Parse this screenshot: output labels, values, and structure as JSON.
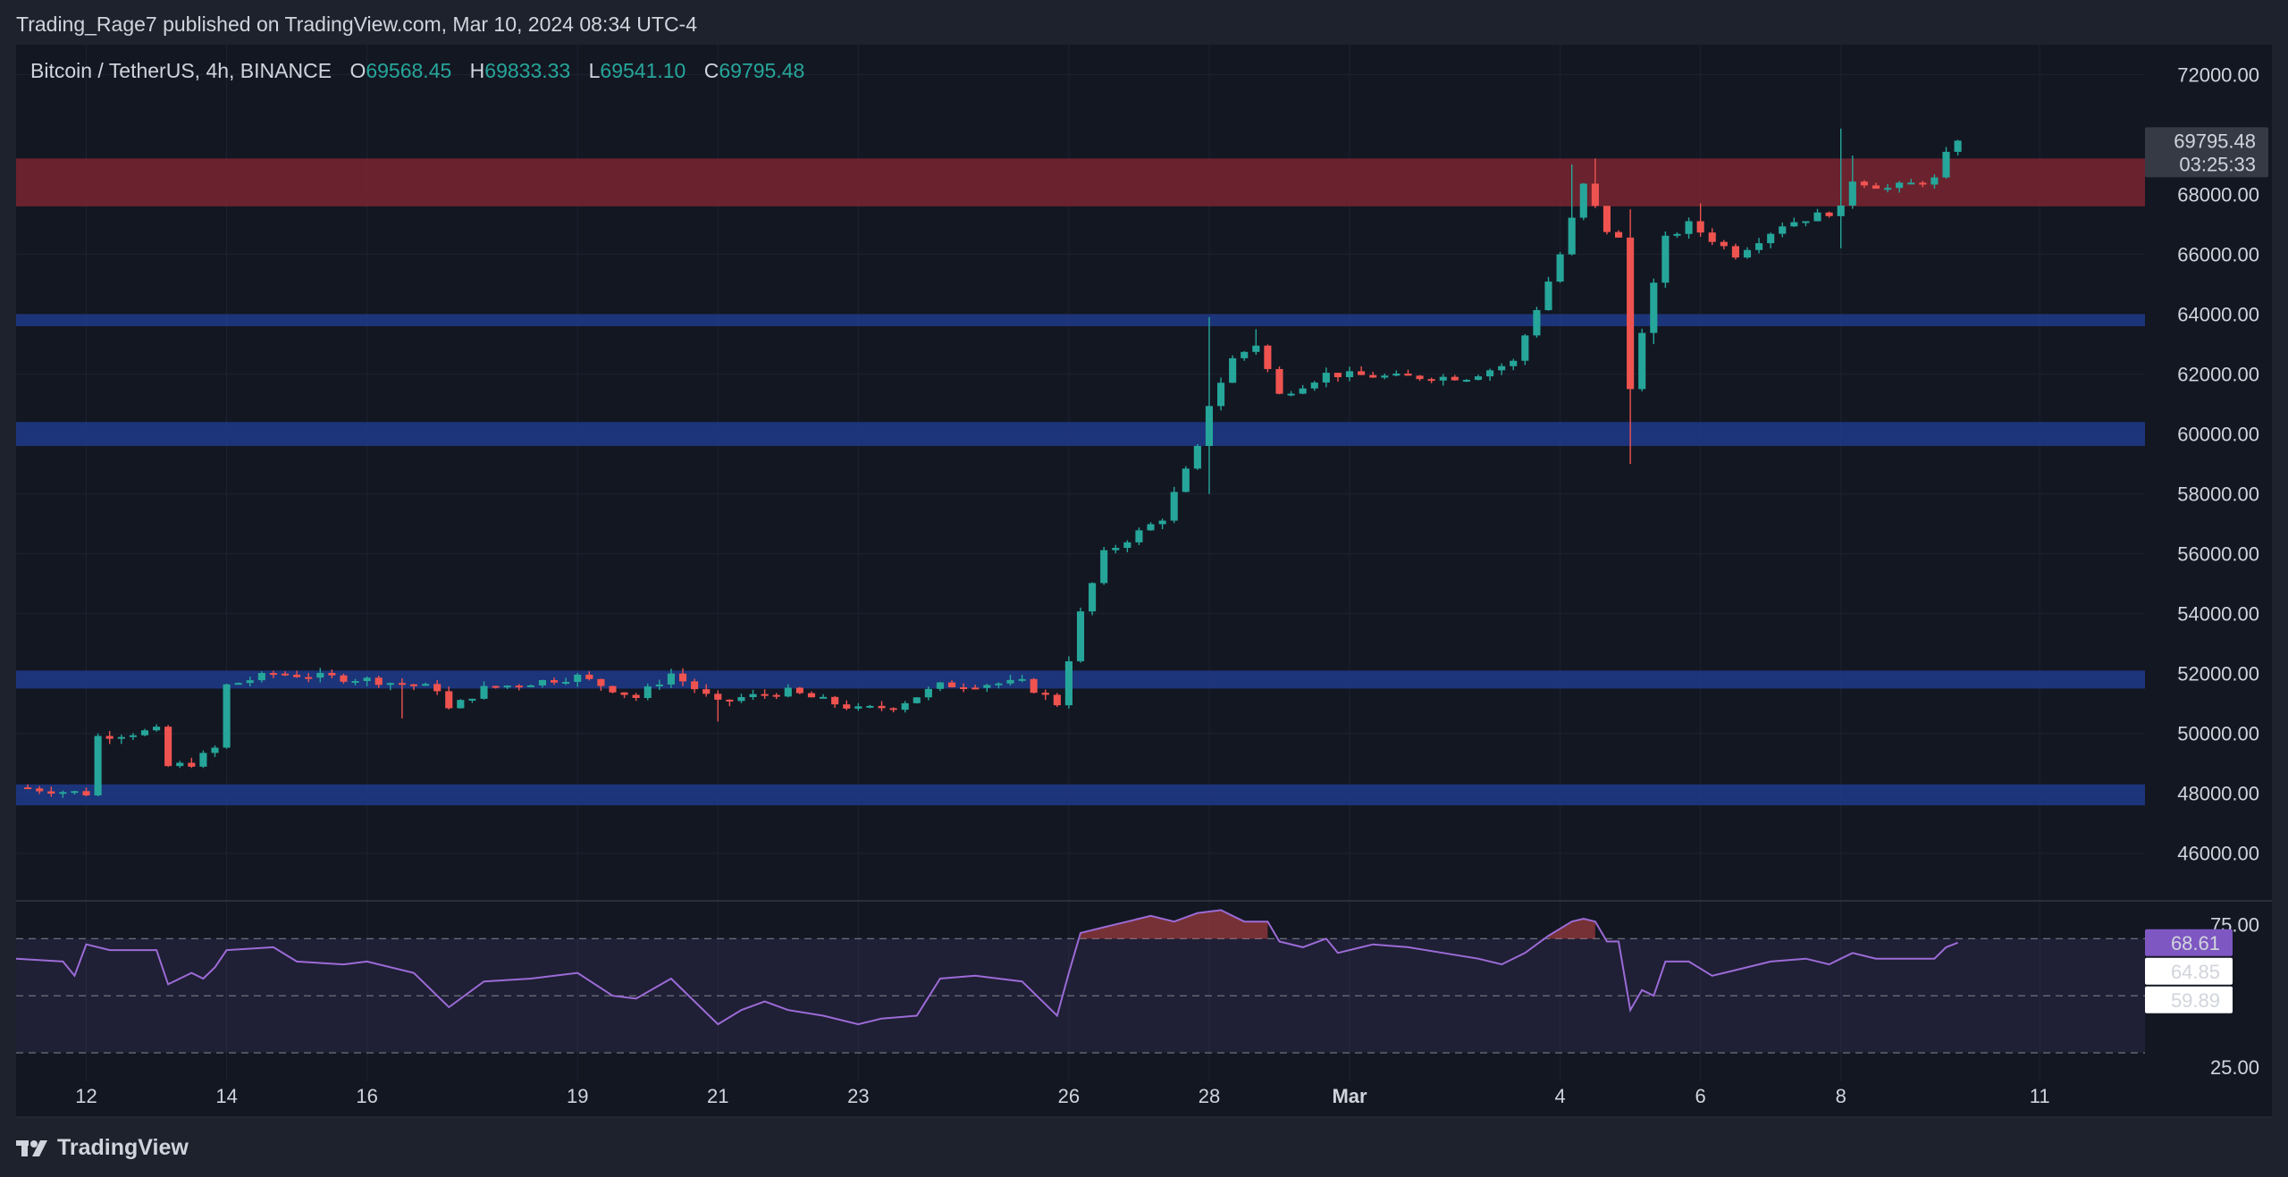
{
  "header": {
    "published_by": "Trading_Rage7 published on TradingView.com, Mar 10, 2024 08:34 UTC-4"
  },
  "legend": {
    "symbol": "Bitcoin / TetherUS, 4h, BINANCE",
    "open_key": "O",
    "open": "69568.45",
    "high_key": "H",
    "high": "69833.33",
    "low_key": "L",
    "low": "69541.10",
    "close_key": "C",
    "close": "69795.48"
  },
  "price_badge": {
    "price": "69795.48",
    "countdown": "03:25:33"
  },
  "rsi_badges": {
    "rsi": "68.61",
    "upper": "64.85",
    "lower": "59.89"
  },
  "footer": {
    "brand": "TradingView"
  },
  "colors": {
    "up": "#26a69a",
    "down": "#ef5350",
    "support_zone": "#1f3a8a",
    "resistance_zone": "#7a2530",
    "rsi_line": "#9c6bd6",
    "rsi_badge": "#7e57c2"
  },
  "chart_data": [
    {
      "type": "candlestick",
      "title": "Bitcoin / TetherUS, 4h, BINANCE",
      "timeframe": "4h",
      "ylim": [
        44500,
        73000
      ],
      "y_ticks": [
        46000,
        48000,
        50000,
        52000,
        54000,
        56000,
        58000,
        60000,
        62000,
        64000,
        66000,
        68000,
        72000
      ],
      "y_tick_labels": [
        "46000.00",
        "48000.00",
        "50000.00",
        "52000.00",
        "54000.00",
        "56000.00",
        "58000.00",
        "60000.00",
        "62000.00",
        "64000.00",
        "66000.00",
        "68000.00",
        "72000.00"
      ],
      "x_ticks": [
        {
          "label": "12",
          "t": 2
        },
        {
          "label": "14",
          "t": 14
        },
        {
          "label": "16",
          "t": 26
        },
        {
          "label": "19",
          "t": 44
        },
        {
          "label": "21",
          "t": 56
        },
        {
          "label": "23",
          "t": 68
        },
        {
          "label": "26",
          "t": 86
        },
        {
          "label": "28",
          "t": 98
        },
        {
          "label": "Mar",
          "t": 110
        },
        {
          "label": "4",
          "t": 128
        },
        {
          "label": "6",
          "t": 140
        },
        {
          "label": "8",
          "t": 152
        },
        {
          "label": "11",
          "t": 169
        }
      ],
      "x_range": [
        -4,
        178
      ],
      "zones": [
        {
          "kind": "resistance",
          "from": 67600,
          "to": 69200
        },
        {
          "kind": "support",
          "from": 63600,
          "to": 64000
        },
        {
          "kind": "support",
          "from": 59600,
          "to": 60400
        },
        {
          "kind": "support",
          "from": 51500,
          "to": 52100
        },
        {
          "kind": "support",
          "from": 47600,
          "to": 48300
        }
      ],
      "last_price": 69795.48,
      "grid": true,
      "anchors": [
        {
          "t": -4,
          "c": 48200
        },
        {
          "t": 2,
          "c": 48000
        },
        {
          "t": 3,
          "c": 49900
        },
        {
          "t": 8,
          "c": 50100
        },
        {
          "t": 9,
          "c": 48900
        },
        {
          "t": 11,
          "c": 49000
        },
        {
          "t": 13,
          "c": 49500
        },
        {
          "t": 14,
          "c": 51600
        },
        {
          "t": 18,
          "c": 52000
        },
        {
          "t": 26,
          "c": 51800
        },
        {
          "t": 32,
          "c": 51500
        },
        {
          "t": 33,
          "c": 50800
        },
        {
          "t": 36,
          "c": 51500
        },
        {
          "t": 44,
          "c": 51900
        },
        {
          "t": 49,
          "c": 51200
        },
        {
          "t": 52,
          "c": 52000
        },
        {
          "t": 56,
          "c": 51000
        },
        {
          "t": 58,
          "c": 51200
        },
        {
          "t": 62,
          "c": 51400
        },
        {
          "t": 68,
          "c": 50800
        },
        {
          "t": 71,
          "c": 50900
        },
        {
          "t": 75,
          "c": 51600
        },
        {
          "t": 82,
          "c": 51700
        },
        {
          "t": 85,
          "c": 51000
        },
        {
          "t": 86,
          "c": 52500
        },
        {
          "t": 87,
          "c": 54000
        },
        {
          "t": 89,
          "c": 56000
        },
        {
          "t": 94,
          "c": 57200
        },
        {
          "t": 95,
          "c": 58000
        },
        {
          "t": 97,
          "c": 59500
        },
        {
          "t": 98,
          "c": 61000
        },
        {
          "t": 100,
          "c": 62500
        },
        {
          "t": 102,
          "c": 63000
        },
        {
          "t": 104,
          "c": 61300
        },
        {
          "t": 108,
          "c": 62000
        },
        {
          "t": 114,
          "c": 61900
        },
        {
          "t": 120,
          "c": 61900
        },
        {
          "t": 124,
          "c": 62400
        },
        {
          "t": 126,
          "c": 64200
        },
        {
          "t": 128,
          "c": 66000
        },
        {
          "t": 130,
          "c": 68300
        },
        {
          "t": 132,
          "c": 66800
        },
        {
          "t": 133,
          "c": 66500
        },
        {
          "t": 134,
          "c": 61500
        },
        {
          "t": 135,
          "c": 63500
        },
        {
          "t": 137,
          "c": 66500
        },
        {
          "t": 139,
          "c": 67000
        },
        {
          "t": 143,
          "c": 66000
        },
        {
          "t": 147,
          "c": 67000
        },
        {
          "t": 152,
          "c": 67500
        },
        {
          "t": 153,
          "c": 68500
        },
        {
          "t": 156,
          "c": 68200
        },
        {
          "t": 160,
          "c": 68500
        },
        {
          "t": 161,
          "c": 69300
        },
        {
          "t": 162,
          "c": 69795
        }
      ],
      "wicks": [
        {
          "t": 29,
          "l": 50500
        },
        {
          "t": 56,
          "l": 50400
        },
        {
          "t": 98,
          "h": 63900,
          "l": 58000
        },
        {
          "t": 102,
          "h": 63500
        },
        {
          "t": 129,
          "h": 69000
        },
        {
          "t": 131,
          "h": 69200
        },
        {
          "t": 134,
          "h": 67500,
          "l": 59000
        },
        {
          "t": 140,
          "h": 67700
        },
        {
          "t": 152,
          "h": 70200,
          "l": 66200
        },
        {
          "t": 153,
          "h": 69300
        },
        {
          "t": 136,
          "l": 63000
        }
      ]
    },
    {
      "type": "line",
      "title": "RSI",
      "ylim": [
        20,
        82
      ],
      "levels": [
        70,
        50,
        30
      ],
      "y_tick_labels": [
        {
          "value": 75,
          "label": "75.00"
        },
        {
          "value": 25,
          "label": "25.00"
        }
      ],
      "series": [
        {
          "points": [
            {
              "t": -4,
              "v": 63
            },
            {
              "t": 0,
              "v": 62
            },
            {
              "t": 1,
              "v": 57
            },
            {
              "t": 2,
              "v": 68
            },
            {
              "t": 4,
              "v": 66
            },
            {
              "t": 8,
              "v": 66
            },
            {
              "t": 9,
              "v": 54
            },
            {
              "t": 11,
              "v": 58
            },
            {
              "t": 12,
              "v": 56
            },
            {
              "t": 13,
              "v": 60
            },
            {
              "t": 14,
              "v": 66
            },
            {
              "t": 18,
              "v": 67
            },
            {
              "t": 20,
              "v": 62
            },
            {
              "t": 24,
              "v": 61
            },
            {
              "t": 26,
              "v": 62
            },
            {
              "t": 30,
              "v": 58
            },
            {
              "t": 33,
              "v": 46
            },
            {
              "t": 36,
              "v": 55
            },
            {
              "t": 40,
              "v": 56
            },
            {
              "t": 44,
              "v": 58
            },
            {
              "t": 47,
              "v": 50
            },
            {
              "t": 49,
              "v": 49
            },
            {
              "t": 52,
              "v": 56
            },
            {
              "t": 56,
              "v": 40
            },
            {
              "t": 58,
              "v": 45
            },
            {
              "t": 60,
              "v": 48
            },
            {
              "t": 62,
              "v": 45
            },
            {
              "t": 65,
              "v": 43
            },
            {
              "t": 68,
              "v": 40
            },
            {
              "t": 70,
              "v": 42
            },
            {
              "t": 73,
              "v": 43
            },
            {
              "t": 75,
              "v": 56
            },
            {
              "t": 78,
              "v": 57
            },
            {
              "t": 82,
              "v": 55
            },
            {
              "t": 85,
              "v": 43
            },
            {
              "t": 86,
              "v": 58
            },
            {
              "t": 87,
              "v": 72
            },
            {
              "t": 89,
              "v": 74
            },
            {
              "t": 91,
              "v": 76
            },
            {
              "t": 93,
              "v": 78
            },
            {
              "t": 95,
              "v": 76
            },
            {
              "t": 97,
              "v": 79
            },
            {
              "t": 99,
              "v": 80
            },
            {
              "t": 101,
              "v": 76
            },
            {
              "t": 103,
              "v": 76
            },
            {
              "t": 104,
              "v": 69
            },
            {
              "t": 106,
              "v": 67
            },
            {
              "t": 108,
              "v": 70
            },
            {
              "t": 109,
              "v": 65
            },
            {
              "t": 112,
              "v": 68
            },
            {
              "t": 115,
              "v": 67
            },
            {
              "t": 118,
              "v": 65
            },
            {
              "t": 121,
              "v": 63
            },
            {
              "t": 123,
              "v": 61
            },
            {
              "t": 125,
              "v": 65
            },
            {
              "t": 127,
              "v": 71
            },
            {
              "t": 129,
              "v": 76
            },
            {
              "t": 130,
              "v": 77
            },
            {
              "t": 131,
              "v": 76
            },
            {
              "t": 132,
              "v": 69
            },
            {
              "t": 133,
              "v": 69
            },
            {
              "t": 134,
              "v": 45
            },
            {
              "t": 135,
              "v": 52
            },
            {
              "t": 136,
              "v": 50
            },
            {
              "t": 137,
              "v": 62
            },
            {
              "t": 139,
              "v": 62
            },
            {
              "t": 141,
              "v": 57
            },
            {
              "t": 143,
              "v": 59
            },
            {
              "t": 146,
              "v": 62
            },
            {
              "t": 149,
              "v": 63
            },
            {
              "t": 151,
              "v": 61
            },
            {
              "t": 152,
              "v": 63
            },
            {
              "t": 153,
              "v": 65
            },
            {
              "t": 155,
              "v": 63
            },
            {
              "t": 158,
              "v": 63
            },
            {
              "t": 160,
              "v": 63
            },
            {
              "t": 161,
              "v": 67
            },
            {
              "t": 162,
              "v": 68.61
            }
          ]
        }
      ]
    }
  ]
}
